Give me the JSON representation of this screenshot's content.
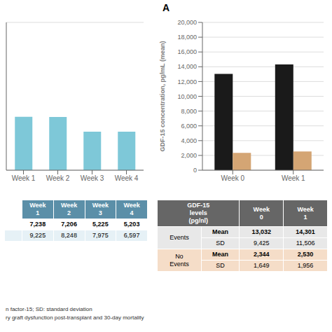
{
  "title": "A",
  "annotations": [
    "n factor-15; SD: standard deviation\nry graft dysfunction post-transplant and 30-day mortality"
  ],
  "chart_data": [
    {
      "type": "bar",
      "categories": [
        "Week 1",
        "Week 2",
        "Week 3",
        "Week 4"
      ],
      "values": [
        7238,
        7206,
        5225,
        5203
      ],
      "color": "#7ec8d8",
      "ylim": [
        0,
        20000
      ],
      "yticks": [
        0,
        2000,
        4000,
        6000,
        8000,
        10000,
        12000,
        14000,
        16000,
        18000,
        20000
      ],
      "grid": true,
      "tick_labels": "x"
    },
    {
      "type": "bar",
      "categories": [
        "Week 0",
        "Week 1"
      ],
      "series": [
        {
          "color": "#1a1a1a",
          "values": [
            13032,
            14301
          ]
        },
        {
          "color": "#d4a574",
          "values": [
            2344,
            2530
          ]
        }
      ],
      "ylabel": "GDF-15 concentration, pg/mL (mean)",
      "ylim": [
        0,
        20000
      ],
      "yticks": [
        0,
        {
          "value": 2000,
          "label": "2,000"
        },
        {
          "value": 4000,
          "label": "4,000"
        },
        {
          "value": 6000,
          "label": "6,000"
        },
        {
          "value": 8000,
          "label": "8,000"
        },
        {
          "value": 10000,
          "label": "10,000"
        },
        {
          "value": 12000,
          "label": "12,000"
        },
        {
          "value": 14000,
          "label": "14,000"
        },
        {
          "value": 16000,
          "label": "16,000"
        },
        {
          "value": 18000,
          "label": "18,000"
        },
        {
          "value": 20000,
          "label": "20,000"
        }
      ],
      "grid": true
    },
    {
      "type": "table",
      "columns": [
        "Week\n1",
        "Week\n2",
        "Week\n3",
        "Week\n4"
      ],
      "rows": [
        [
          "7,238",
          "7,206",
          "5,225",
          "5,203"
        ],
        [
          "9,225",
          "8,248",
          "7,975",
          "6,597"
        ]
      ]
    },
    {
      "type": "table",
      "columns": [
        "GDF-15\nlevels\n(pg/nl)",
        "Week\n0",
        "Week\n1"
      ],
      "groups": [
        {
          "label": "Events",
          "color": "#e8e8e8",
          "rows": [
            {
              "label": "Mean",
              "values": [
                "13,032",
                "14,301"
              ]
            },
            {
              "label": "SD",
              "values": [
                "9,425",
                "11,506"
              ]
            }
          ]
        },
        {
          "label": "No\nEvents",
          "color": "#f5ddc8",
          "rows": [
            {
              "label": "Mean",
              "values": [
                "2,344",
                "2,530"
              ]
            },
            {
              "label": "SD",
              "values": [
                "1,649",
                "1,956"
              ]
            }
          ]
        }
      ]
    }
  ]
}
